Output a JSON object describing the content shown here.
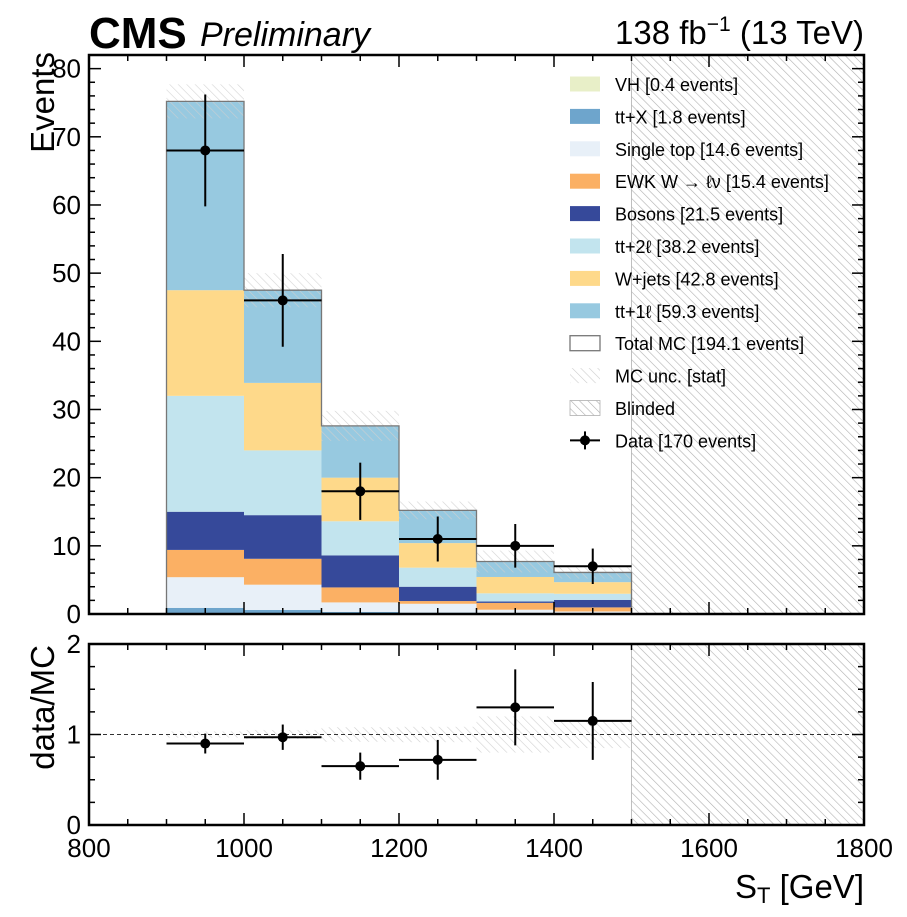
{
  "header": {
    "experiment": "CMS",
    "status": "Preliminary",
    "lumi_base": "138 fb",
    "lumi_exp": "−1",
    "lumi_energy": " (13 TeV)"
  },
  "chart_data": {
    "type": "bar",
    "stacked": true,
    "bin_edges": [
      900,
      1000,
      1100,
      1200,
      1300,
      1400,
      1500
    ],
    "xlim": [
      800,
      1800
    ],
    "ylim": [
      0,
      82
    ],
    "ratio_ylim": [
      0,
      2
    ],
    "xlabel": "S_T [GeV]",
    "xlabel_main": "S",
    "xlabel_sub": "T",
    "xlabel_rest": " [GeV]",
    "ylabel": "Events",
    "ratio_ylabel": "data/MC",
    "x_ticks": [
      "800",
      "1000",
      "1200",
      "1400",
      "1600",
      "1800"
    ],
    "y_ticks": [
      "0",
      "10",
      "20",
      "30",
      "40",
      "50",
      "60",
      "70",
      "80"
    ],
    "ratio_y_ticks": [
      "0",
      "1",
      "2"
    ],
    "blinded_range": [
      1500,
      1800
    ],
    "series": [
      {
        "name": "VH [0.4 events]",
        "color": "#e8efc8",
        "values": [
          0.15,
          0.1,
          0.05,
          0.05,
          0.03,
          0.02
        ]
      },
      {
        "name": "tt+X [1.8 events]",
        "color": "#6ea5cc",
        "values": [
          0.75,
          0.5,
          0.25,
          0.15,
          0.1,
          0.05
        ]
      },
      {
        "name": "Single top [14.6 events]",
        "color": "#e8f0f8",
        "values": [
          4.5,
          3.7,
          1.4,
          1.3,
          0.5,
          0.3
        ]
      },
      {
        "name": "EWK W → ℓν [15.4 events]",
        "color": "#fbb064",
        "values": [
          4.0,
          3.8,
          2.2,
          0.4,
          1.0,
          0.6
        ]
      },
      {
        "name": "Bosons [21.5 events]",
        "color": "#36499a",
        "values": [
          5.6,
          6.4,
          4.7,
          2.1,
          0.2,
          1.1
        ]
      },
      {
        "name": "tt+2ℓ [38.2 events]",
        "color": "#c2e4ee",
        "values": [
          17.0,
          9.5,
          5.0,
          2.8,
          1.2,
          0.9
        ]
      },
      {
        "name": "W+jets [42.8 events]",
        "color": "#fed98a",
        "values": [
          15.5,
          9.9,
          6.4,
          3.6,
          2.4,
          1.7
        ]
      },
      {
        "name": "tt+1ℓ [59.3 events]",
        "color": "#97c9e0",
        "values": [
          27.6,
          13.6,
          7.6,
          4.8,
          2.3,
          1.4
        ]
      }
    ],
    "total_mc_label": "Total MC [194.1 events]",
    "mc_unc_label": "MC unc. [stat]",
    "blinded_label": "Blinded",
    "data_label": "Data [170 events]",
    "total_mc": [
      75.2,
      47.5,
      27.6,
      15.2,
      7.7,
      6.1
    ],
    "mc_unc": [
      2.5,
      2.5,
      2.2,
      1.3,
      1.6,
      0.9
    ],
    "data": {
      "x": [
        950,
        1050,
        1150,
        1250,
        1350,
        1450
      ],
      "y": [
        68,
        46,
        18,
        11,
        10,
        7
      ],
      "yerr": [
        8.2,
        6.8,
        4.2,
        3.3,
        3.2,
        2.6
      ]
    },
    "ratio": {
      "x": [
        950,
        1050,
        1150,
        1250,
        1350,
        1450
      ],
      "y": [
        0.9,
        0.97,
        0.65,
        0.72,
        1.3,
        1.15
      ],
      "yerr": [
        0.11,
        0.14,
        0.15,
        0.22,
        0.42,
        0.43
      ],
      "unc": [
        0.035,
        0.05,
        0.08,
        0.085,
        0.2,
        0.15
      ]
    },
    "legend_placement": "top-right"
  }
}
